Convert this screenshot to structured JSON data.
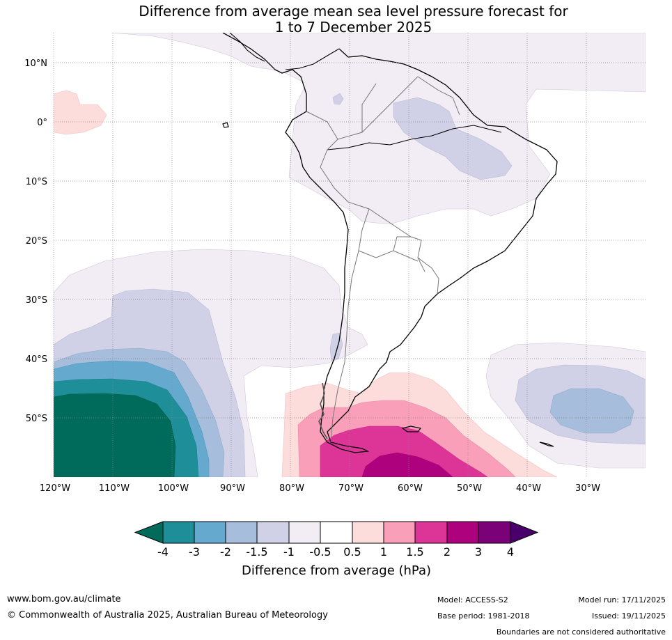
{
  "title_line1": "Difference from average mean sea level pressure forecast for",
  "title_line2": "1 to 7 December 2025",
  "lat_labels": [
    "10°N",
    "0°",
    "10°S",
    "20°S",
    "30°S",
    "40°S",
    "50°S"
  ],
  "lon_labels": [
    "120°W",
    "110°W",
    "100°W",
    "90°W",
    "80°W",
    "70°W",
    "60°W",
    "50°W",
    "40°W",
    "30°W"
  ],
  "colorbar": {
    "ticks": [
      "-4",
      "-3",
      "-2",
      "-1.5",
      "-1",
      "-0.5",
      "0.5",
      "1",
      "1.5",
      "2",
      "3",
      "4"
    ],
    "colors": [
      "#006b5a",
      "#1e8f98",
      "#66a9cf",
      "#a6bddb",
      "#d0d1e6",
      "#f2ecf4",
      "#ffffff",
      "#fddcdc",
      "#f99fba",
      "#dd3497",
      "#ae017e",
      "#7a0177",
      "#49006a"
    ],
    "title": "Difference from average (hPa)"
  },
  "footer": {
    "url": "www.bom.gov.au/climate",
    "copyright": "© Commonwealth of Australia 2025, Australian Bureau of Meteorology",
    "model": "Model: ACCESS-S2",
    "base_period": "Base period: 1981-2018",
    "model_run": "Model run: 17/11/2025",
    "issued": "Issued: 19/11/2025",
    "boundaries": "Boundaries are not considered authoritative"
  }
}
